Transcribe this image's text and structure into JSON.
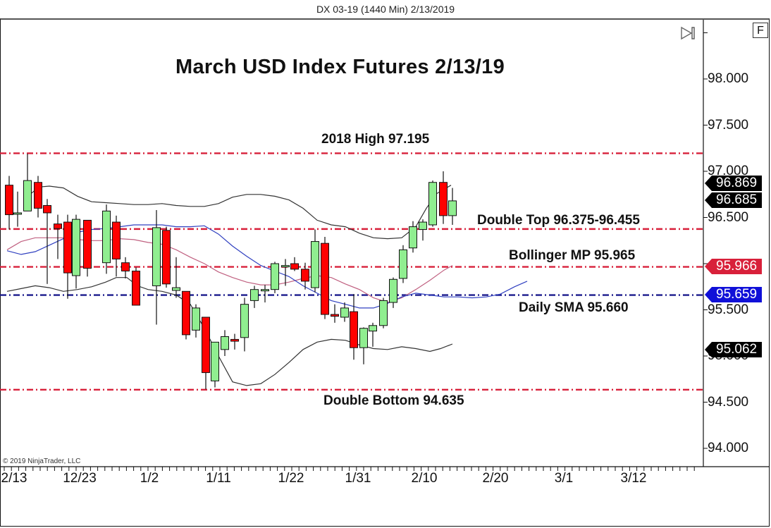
{
  "window": {
    "title": "DX 03-19 (1440 Min)  2/13/2019"
  },
  "controls": {
    "f_button_label": "F",
    "scroll_end_icon": "skip-to-end-icon"
  },
  "copyright": "© 2019 NinjaTrader, LLC",
  "annotations": {
    "title": "March USD Index Futures 2/13/19",
    "high_2018": "2018 High 97.195",
    "double_top": "Double Top 96.375-96.455",
    "bollinger_mp": "Bollinger MP 95.965",
    "daily_sma": "Daily SMA 95.660",
    "double_bottom": "Double Bottom 94.635"
  },
  "y_axis": {
    "labels": [
      "98.000",
      "97.500",
      "97.000",
      "96.500",
      "95.500",
      "95.000",
      "94.500",
      "94.000"
    ]
  },
  "x_axis": {
    "labels": [
      "2/13",
      "12/23",
      "1/2",
      "1/11",
      "1/22",
      "1/31",
      "2/10",
      "2/20",
      "3/1",
      "3/12"
    ]
  },
  "price_tags": [
    {
      "value": "96.869",
      "color": "#000000"
    },
    {
      "value": "96.685",
      "color": "#000000"
    },
    {
      "value": "95.966",
      "color": "#d8203a"
    },
    {
      "value": "95.659",
      "color": "#1010d8"
    },
    {
      "value": "95.062",
      "color": "#000000"
    }
  ],
  "colors": {
    "up_candle": "#90ee90",
    "down_candle": "#ff0000",
    "resistance_line": "#d8203a",
    "sma_line": "#1a1a8c",
    "bb_band": "#333333",
    "bb_mid": "#c06080",
    "sma_indicator": "#3040c0"
  },
  "chart_data": {
    "type": "candlestick",
    "title": "March USD Index Futures 2/13/19",
    "subtitle": "DX 03-19 (1440 Min)  2/13/2019",
    "xlabel": "",
    "ylabel": "",
    "ylim": [
      93.8,
      98.5
    ],
    "y_ticks": [
      94.0,
      94.5,
      95.0,
      95.5,
      96.5,
      97.0,
      97.5,
      98.0
    ],
    "x_tick_labels": [
      "2/13",
      "12/23",
      "1/2",
      "1/11",
      "1/22",
      "1/31",
      "2/10",
      "2/20",
      "3/1",
      "3/12"
    ],
    "grid": false,
    "horizontal_levels": [
      {
        "label": "2018 High",
        "value": 97.195,
        "style": "dash-dot",
        "color": "#d8203a"
      },
      {
        "label": "Double Top",
        "value": 96.375,
        "range": [
          96.375,
          96.455
        ],
        "style": "dash-dot",
        "color": "#d8203a"
      },
      {
        "label": "Bollinger MP",
        "value": 95.965,
        "style": "dash-dot",
        "color": "#d8203a"
      },
      {
        "label": "Daily SMA",
        "value": 95.66,
        "style": "dash-dot",
        "color": "#1a1a8c"
      },
      {
        "label": "Double Bottom",
        "value": 94.635,
        "style": "dash-dot",
        "color": "#d8203a"
      }
    ],
    "price_markers": [
      96.869,
      96.685,
      95.966,
      95.659,
      95.062
    ],
    "candles": [
      {
        "x": 13,
        "o": 96.85,
        "h": 96.95,
        "l": 96.37,
        "c": 96.53
      },
      {
        "x": 25,
        "o": 96.55,
        "h": 96.78,
        "l": 96.4,
        "c": 96.55
      },
      {
        "x": 39,
        "o": 96.57,
        "h": 97.19,
        "l": 96.57,
        "c": 96.9
      },
      {
        "x": 54,
        "o": 96.88,
        "h": 96.95,
        "l": 96.5,
        "c": 96.6
      },
      {
        "x": 67,
        "o": 96.63,
        "h": 96.7,
        "l": 95.78,
        "c": 96.55
      },
      {
        "x": 82,
        "o": 96.43,
        "h": 96.53,
        "l": 96.05,
        "c": 96.38
      },
      {
        "x": 96,
        "o": 96.45,
        "h": 96.53,
        "l": 95.62,
        "c": 95.9
      },
      {
        "x": 108,
        "o": 95.87,
        "h": 96.53,
        "l": 95.73,
        "c": 96.48
      },
      {
        "x": 124,
        "o": 96.47,
        "h": 96.47,
        "l": 95.86,
        "c": 95.95
      },
      {
        "x": 151,
        "o": 96.01,
        "h": 96.64,
        "l": 95.89,
        "c": 96.57
      },
      {
        "x": 165,
        "o": 96.45,
        "h": 96.52,
        "l": 95.86,
        "c": 96.05
      },
      {
        "x": 178,
        "o": 96.01,
        "h": 96.07,
        "l": 95.84,
        "c": 95.92
      },
      {
        "x": 193,
        "o": 95.92,
        "h": 95.96,
        "l": 95.62,
        "c": 95.55
      },
      {
        "x": 222,
        "o": 95.76,
        "h": 96.58,
        "l": 95.34,
        "c": 96.39
      },
      {
        "x": 236,
        "o": 96.36,
        "h": 96.4,
        "l": 95.74,
        "c": 95.78
      },
      {
        "x": 250,
        "o": 95.71,
        "h": 96.07,
        "l": 95.63,
        "c": 95.74
      },
      {
        "x": 264,
        "o": 95.7,
        "h": 95.7,
        "l": 95.18,
        "c": 95.23
      },
      {
        "x": 278,
        "o": 95.28,
        "h": 95.56,
        "l": 95.2,
        "c": 95.52
      },
      {
        "x": 292,
        "o": 95.42,
        "h": 95.22,
        "l": 94.64,
        "c": 94.82
      },
      {
        "x": 305,
        "o": 94.73,
        "h": 95.13,
        "l": 94.66,
        "c": 95.15
      },
      {
        "x": 319,
        "o": 95.07,
        "h": 95.28,
        "l": 95.0,
        "c": 95.21
      },
      {
        "x": 333,
        "o": 95.18,
        "h": 95.24,
        "l": 95.07,
        "c": 95.16
      },
      {
        "x": 347,
        "o": 95.2,
        "h": 95.63,
        "l": 95.05,
        "c": 95.56
      },
      {
        "x": 361,
        "o": 95.6,
        "h": 95.76,
        "l": 95.52,
        "c": 95.72
      },
      {
        "x": 376,
        "o": 95.72,
        "h": 95.77,
        "l": 95.58,
        "c": 95.72
      },
      {
        "x": 390,
        "o": 95.72,
        "h": 96.02,
        "l": 95.68,
        "c": 96.0
      },
      {
        "x": 405,
        "o": 95.97,
        "h": 96.05,
        "l": 95.76,
        "c": 95.98
      },
      {
        "x": 418,
        "o": 96.0,
        "h": 96.07,
        "l": 95.92,
        "c": 95.94
      },
      {
        "x": 433,
        "o": 95.94,
        "h": 96.01,
        "l": 95.72,
        "c": 95.81
      },
      {
        "x": 447,
        "o": 95.74,
        "h": 96.37,
        "l": 95.69,
        "c": 96.24
      },
      {
        "x": 461,
        "o": 96.22,
        "h": 96.29,
        "l": 95.4,
        "c": 95.45
      },
      {
        "x": 475,
        "o": 95.45,
        "h": 95.56,
        "l": 95.36,
        "c": 95.43
      },
      {
        "x": 489,
        "o": 95.42,
        "h": 95.58,
        "l": 95.37,
        "c": 95.52
      },
      {
        "x": 502,
        "o": 95.48,
        "h": 95.67,
        "l": 94.96,
        "c": 95.09
      },
      {
        "x": 516,
        "o": 95.09,
        "h": 95.31,
        "l": 94.91,
        "c": 95.3
      },
      {
        "x": 529,
        "o": 95.27,
        "h": 95.36,
        "l": 95.1,
        "c": 95.33
      },
      {
        "x": 544,
        "o": 95.33,
        "h": 95.63,
        "l": 95.3,
        "c": 95.6
      },
      {
        "x": 558,
        "o": 95.58,
        "h": 95.85,
        "l": 95.52,
        "c": 95.83
      },
      {
        "x": 572,
        "o": 95.84,
        "h": 96.2,
        "l": 95.79,
        "c": 96.15
      },
      {
        "x": 586,
        "o": 96.17,
        "h": 96.46,
        "l": 96.12,
        "c": 96.4
      },
      {
        "x": 600,
        "o": 96.37,
        "h": 96.48,
        "l": 96.25,
        "c": 96.45
      },
      {
        "x": 614,
        "o": 96.42,
        "h": 96.9,
        "l": 96.4,
        "c": 96.88
      },
      {
        "x": 629,
        "o": 96.88,
        "h": 97.0,
        "l": 96.43,
        "c": 96.52
      },
      {
        "x": 642,
        "o": 96.52,
        "h": 96.82,
        "l": 96.42,
        "c": 96.68
      }
    ],
    "series": [
      {
        "name": "Bollinger Upper",
        "color": "#333333",
        "points": [
          [
            35,
            96.7
          ],
          [
            55,
            96.83
          ],
          [
            70,
            96.84
          ],
          [
            90,
            96.82
          ],
          [
            110,
            96.73
          ],
          [
            130,
            96.67
          ],
          [
            150,
            96.66
          ],
          [
            170,
            96.65
          ],
          [
            190,
            96.64
          ],
          [
            210,
            96.64
          ],
          [
            230,
            96.65
          ],
          [
            250,
            96.63
          ],
          [
            270,
            96.62
          ],
          [
            290,
            96.62
          ],
          [
            310,
            96.65
          ],
          [
            330,
            96.72
          ],
          [
            350,
            96.75
          ],
          [
            370,
            96.75
          ],
          [
            390,
            96.73
          ],
          [
            410,
            96.69
          ],
          [
            430,
            96.6
          ],
          [
            450,
            96.47
          ],
          [
            470,
            96.42
          ],
          [
            490,
            96.4
          ],
          [
            510,
            96.33
          ],
          [
            530,
            96.28
          ],
          [
            550,
            96.27
          ],
          [
            570,
            96.28
          ],
          [
            590,
            96.4
          ],
          [
            605,
            96.6
          ],
          [
            620,
            96.76
          ],
          [
            640,
            96.85
          ]
        ]
      },
      {
        "name": "Bollinger Lower",
        "color": "#333333",
        "points": [
          [
            10,
            95.7
          ],
          [
            30,
            95.73
          ],
          [
            50,
            95.76
          ],
          [
            70,
            95.74
          ],
          [
            90,
            95.7
          ],
          [
            110,
            95.72
          ],
          [
            130,
            95.75
          ],
          [
            150,
            95.8
          ],
          [
            165,
            95.85
          ],
          [
            180,
            95.85
          ],
          [
            195,
            95.76
          ],
          [
            210,
            95.72
          ],
          [
            230,
            95.7
          ],
          [
            250,
            95.66
          ],
          [
            270,
            95.56
          ],
          [
            290,
            95.3
          ],
          [
            310,
            95.0
          ],
          [
            330,
            94.72
          ],
          [
            350,
            94.68
          ],
          [
            370,
            94.7
          ],
          [
            390,
            94.8
          ],
          [
            410,
            94.93
          ],
          [
            430,
            95.07
          ],
          [
            450,
            95.15
          ],
          [
            470,
            95.18
          ],
          [
            490,
            95.17
          ],
          [
            510,
            95.12
          ],
          [
            530,
            95.08
          ],
          [
            550,
            95.07
          ],
          [
            570,
            95.1
          ],
          [
            590,
            95.08
          ],
          [
            610,
            95.05
          ],
          [
            625,
            95.08
          ],
          [
            642,
            95.13
          ]
        ]
      },
      {
        "name": "Bollinger Mid",
        "color": "#c06080",
        "points": [
          [
            10,
            96.15
          ],
          [
            30,
            96.24
          ],
          [
            50,
            96.28
          ],
          [
            70,
            96.28
          ],
          [
            90,
            96.28
          ],
          [
            110,
            96.26
          ],
          [
            130,
            96.25
          ],
          [
            150,
            96.25
          ],
          [
            170,
            96.27
          ],
          [
            190,
            96.26
          ],
          [
            210,
            96.23
          ],
          [
            230,
            96.21
          ],
          [
            250,
            96.15
          ],
          [
            270,
            96.07
          ],
          [
            290,
            96.0
          ],
          [
            310,
            95.91
          ],
          [
            330,
            95.85
          ],
          [
            350,
            95.8
          ],
          [
            370,
            95.77
          ],
          [
            390,
            95.77
          ],
          [
            410,
            95.8
          ],
          [
            430,
            95.84
          ],
          [
            450,
            95.87
          ],
          [
            470,
            95.85
          ],
          [
            490,
            95.78
          ],
          [
            510,
            95.72
          ],
          [
            530,
            95.63
          ],
          [
            550,
            95.58
          ],
          [
            570,
            95.63
          ],
          [
            590,
            95.72
          ],
          [
            610,
            95.82
          ],
          [
            630,
            95.93
          ],
          [
            642,
            95.98
          ]
        ]
      },
      {
        "name": "Daily SMA",
        "color": "#3040c0",
        "points": [
          [
            10,
            96.14
          ],
          [
            30,
            96.1
          ],
          [
            50,
            96.13
          ],
          [
            70,
            96.2
          ],
          [
            90,
            96.27
          ],
          [
            110,
            96.34
          ],
          [
            130,
            96.37
          ],
          [
            150,
            96.38
          ],
          [
            170,
            96.4
          ],
          [
            190,
            96.42
          ],
          [
            210,
            96.42
          ],
          [
            230,
            96.42
          ],
          [
            250,
            96.4
          ],
          [
            270,
            96.4
          ],
          [
            290,
            96.41
          ],
          [
            310,
            96.32
          ],
          [
            330,
            96.19
          ],
          [
            350,
            96.08
          ],
          [
            370,
            95.98
          ],
          [
            390,
            95.92
          ],
          [
            410,
            95.86
          ],
          [
            430,
            95.76
          ],
          [
            450,
            95.68
          ],
          [
            470,
            95.6
          ],
          [
            490,
            95.56
          ],
          [
            510,
            95.52
          ],
          [
            530,
            95.52
          ],
          [
            550,
            95.57
          ],
          [
            570,
            95.64
          ],
          [
            590,
            95.68
          ],
          [
            610,
            95.66
          ],
          [
            630,
            95.64
          ],
          [
            650,
            95.64
          ],
          [
            670,
            95.63
          ],
          [
            690,
            95.64
          ],
          [
            710,
            95.67
          ],
          [
            730,
            95.75
          ],
          [
            748,
            95.81
          ]
        ]
      }
    ]
  }
}
